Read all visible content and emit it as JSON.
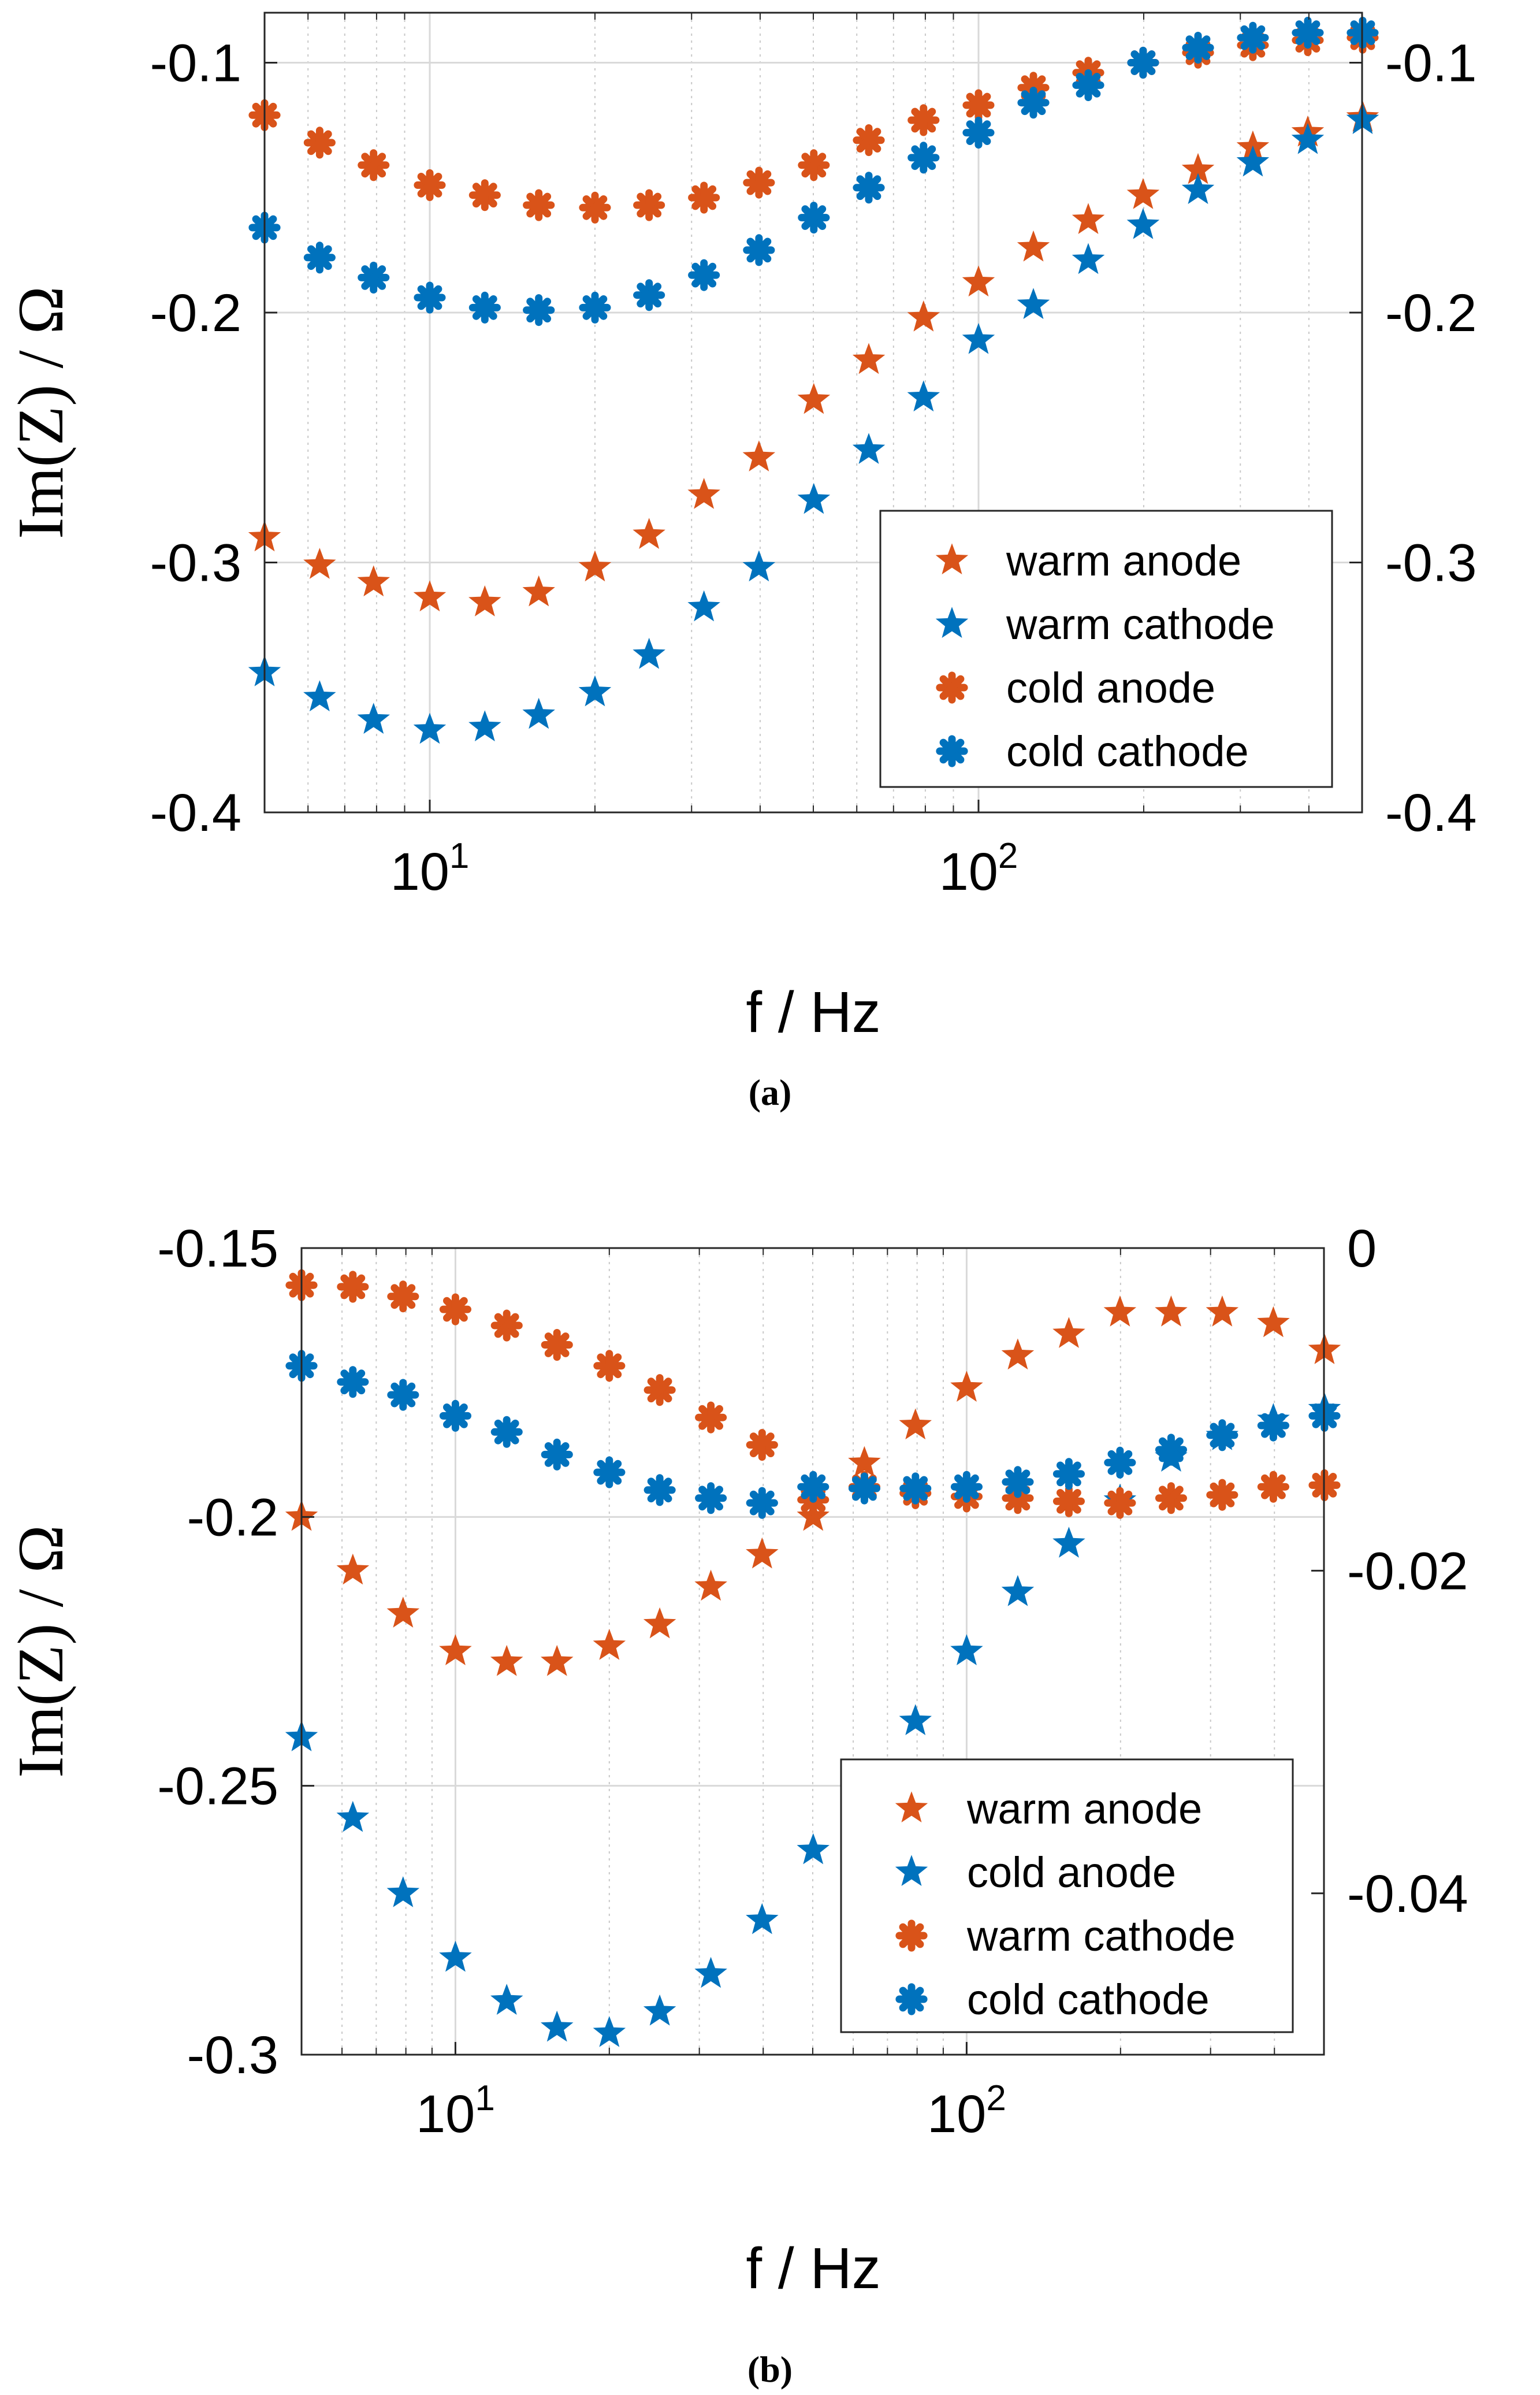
{
  "colors": {
    "orange": "#D95319",
    "blue": "#0072BD",
    "grid": "#d9d9d9",
    "axis": "#262626"
  },
  "chart_data": [
    {
      "type": "scatter",
      "panel_label": "(a)",
      "xlabel": "f / Hz",
      "ylabel": "Im(Z) / Ω",
      "xscale": "log",
      "xlim": [
        5,
        500
      ],
      "ylim": [
        -0.4,
        -0.08
      ],
      "yticks": [
        -0.4,
        -0.3,
        -0.2,
        -0.1
      ],
      "yticklabels": [
        "-0.4",
        "-0.3",
        "-0.2",
        "-0.1"
      ],
      "right_ylim": [
        -0.4,
        -0.08
      ],
      "right_yticks": [
        -0.4,
        -0.3,
        -0.2,
        -0.1
      ],
      "right_yticklabels": [
        "-0.4",
        "-0.3",
        "-0.2",
        "-0.1"
      ],
      "xticks": [
        10,
        100
      ],
      "xtick_base": [
        "10",
        "10"
      ],
      "xtick_exp": [
        "1",
        "2"
      ],
      "grid": true,
      "legend_position": "lower-right",
      "x": [
        5,
        6.3,
        7.9,
        10,
        12.6,
        15.8,
        20,
        25.1,
        31.6,
        39.8,
        50.1,
        63.1,
        79.4,
        100,
        125.9,
        158.5,
        199.5,
        251.2,
        316.2,
        398.1,
        501.2
      ],
      "series": [
        {
          "name": "warm anode",
          "marker": "star",
          "color": "orange",
          "axis": "left",
          "values": [
            -0.29,
            -0.301,
            -0.308,
            -0.314,
            -0.316,
            -0.312,
            -0.302,
            -0.289,
            -0.273,
            -0.258,
            -0.235,
            -0.219,
            -0.202,
            -0.188,
            -0.174,
            -0.163,
            -0.153,
            -0.143,
            -0.134,
            -0.128,
            -0.122
          ]
        },
        {
          "name": "warm cathode",
          "marker": "star",
          "color": "blue",
          "axis": "left",
          "values": [
            -0.344,
            -0.354,
            -0.363,
            -0.367,
            -0.366,
            -0.361,
            -0.352,
            -0.337,
            -0.318,
            -0.302,
            -0.275,
            -0.255,
            -0.234,
            -0.211,
            -0.197,
            -0.179,
            -0.165,
            -0.151,
            -0.14,
            -0.131,
            -0.123
          ]
        },
        {
          "name": "cold anode",
          "marker": "asterisk",
          "color": "orange",
          "axis": "left",
          "values": [
            -0.121,
            -0.132,
            -0.141,
            -0.149,
            -0.153,
            -0.157,
            -0.158,
            -0.157,
            -0.154,
            -0.148,
            -0.141,
            -0.131,
            -0.123,
            -0.117,
            -0.11,
            -0.104,
            -0.1,
            -0.096,
            -0.093,
            -0.091,
            -0.09
          ]
        },
        {
          "name": "cold cathode",
          "marker": "asterisk",
          "color": "blue",
          "axis": "left",
          "values": [
            -0.166,
            -0.178,
            -0.186,
            -0.194,
            -0.198,
            -0.199,
            -0.198,
            -0.193,
            -0.185,
            -0.175,
            -0.162,
            -0.15,
            -0.138,
            -0.128,
            -0.116,
            -0.109,
            -0.1,
            -0.094,
            -0.09,
            -0.088,
            -0.088
          ]
        }
      ]
    },
    {
      "type": "scatter",
      "panel_label": "(b)",
      "xlabel": "f / Hz",
      "ylabel": "Im(Z) / Ω",
      "xscale": "log",
      "xlim": [
        5,
        500
      ],
      "ylim": [
        -0.3,
        -0.15
      ],
      "yticks": [
        -0.3,
        -0.25,
        -0.2,
        -0.15
      ],
      "yticklabels": [
        "-0.3",
        "-0.25",
        "-0.2",
        "-0.15"
      ],
      "right_ylim": [
        -0.05,
        0
      ],
      "right_yticks": [
        -0.04,
        -0.02,
        0
      ],
      "right_yticklabels": [
        "-0.04",
        "-0.02",
        "0"
      ],
      "xticks": [
        10,
        100
      ],
      "xtick_base": [
        "10",
        "10"
      ],
      "xtick_exp": [
        "1",
        "2"
      ],
      "grid": true,
      "legend_position": "lower-right",
      "x": [
        5,
        6.3,
        7.9,
        10,
        12.6,
        15.8,
        20,
        25.1,
        31.6,
        39.8,
        50.1,
        63.1,
        79.4,
        100,
        125.9,
        158.5,
        199.5,
        251.2,
        316.2,
        398.1,
        501.2
      ],
      "series": [
        {
          "name": "warm anode",
          "marker": "star",
          "color": "orange",
          "axis": "left",
          "values": [
            -0.2,
            -0.21,
            -0.218,
            -0.225,
            -0.227,
            -0.227,
            -0.224,
            -0.22,
            -0.213,
            -0.207,
            -0.2,
            -0.19,
            -0.183,
            -0.176,
            -0.17,
            -0.166,
            -0.162,
            -0.162,
            -0.162,
            -0.164,
            -0.169
          ]
        },
        {
          "name": "cold anode",
          "marker": "star",
          "color": "blue",
          "axis": "left",
          "values": [
            -0.241,
            -0.256,
            -0.27,
            -0.282,
            -0.29,
            -0.295,
            -0.296,
            -0.292,
            -0.285,
            -0.275,
            -0.262,
            -0.252,
            -0.238,
            -0.225,
            -0.214,
            -0.205,
            -0.197,
            -0.189,
            -0.185,
            -0.182,
            -0.18
          ]
        },
        {
          "name": "warm cathode",
          "marker": "asterisk",
          "color": "orange",
          "axis": "right",
          "values": [
            -0.0023,
            -0.0024,
            -0.003,
            -0.0038,
            -0.0048,
            -0.006,
            -0.0073,
            -0.0088,
            -0.0105,
            -0.0122,
            -0.0156,
            -0.0148,
            -0.0152,
            -0.0154,
            -0.0155,
            -0.0157,
            -0.0158,
            -0.0155,
            -0.0153,
            -0.0148,
            -0.0147
          ]
        },
        {
          "name": "cold cathode",
          "marker": "asterisk",
          "color": "blue",
          "axis": "right",
          "values": [
            -0.0073,
            -0.0083,
            -0.0091,
            -0.0104,
            -0.0114,
            -0.0128,
            -0.0139,
            -0.015,
            -0.0155,
            -0.0158,
            -0.0148,
            -0.0149,
            -0.0149,
            -0.0148,
            -0.0145,
            -0.014,
            -0.0133,
            -0.0125,
            -0.0116,
            -0.011,
            -0.0104
          ]
        }
      ]
    }
  ]
}
